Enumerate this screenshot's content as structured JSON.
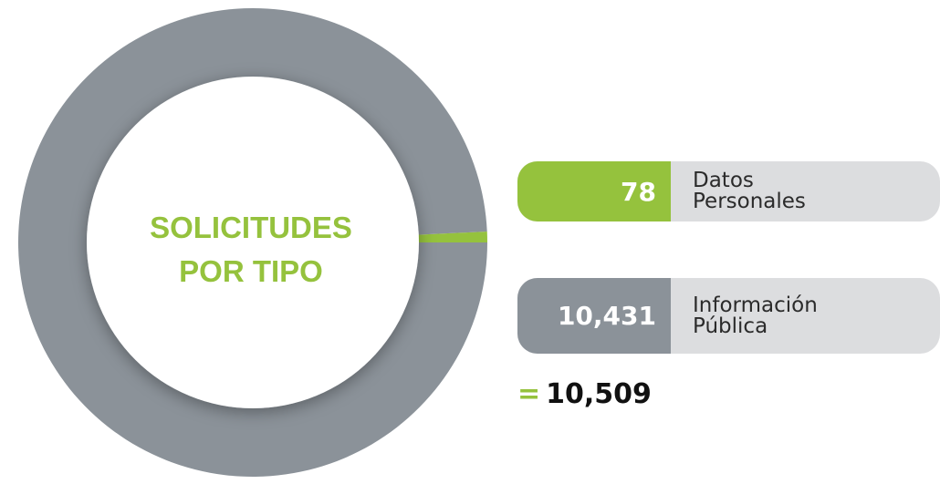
{
  "chart_data": {
    "type": "donut",
    "title": "SOLICITUDES POR TIPO",
    "categories": [
      "Datos Personales",
      "Información Pública"
    ],
    "values": [
      78,
      10431
    ],
    "value_labels": [
      "78",
      "10,431"
    ],
    "colors": [
      "#95c23d",
      "#8b9299"
    ],
    "total_sign": "=",
    "total": 10509,
    "total_label": "10,509"
  }
}
